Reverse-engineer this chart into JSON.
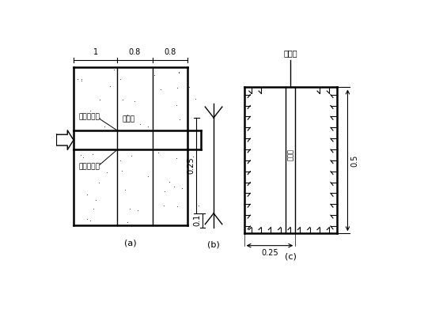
{
  "bg_color": "#ffffff",
  "line_color": "#000000",
  "fig_width": 5.6,
  "fig_height": 4.2,
  "dpi": 100,
  "label_a": "(a)",
  "label_b": "(b)",
  "label_c": "(c)",
  "text_zhishui1": "第一道止水",
  "text_zhishui2": "第二道止水",
  "text_paishui": "排水井",
  "text_zhishuipian": "止水片",
  "text_zhongjian": "止浆片",
  "dim_1": "1",
  "dim_08a": "0.8",
  "dim_08b": "0.8",
  "dim_025_b": "0.25",
  "dim_01": "0.1",
  "dim_025_c": "0.25",
  "dim_05": "0.5"
}
